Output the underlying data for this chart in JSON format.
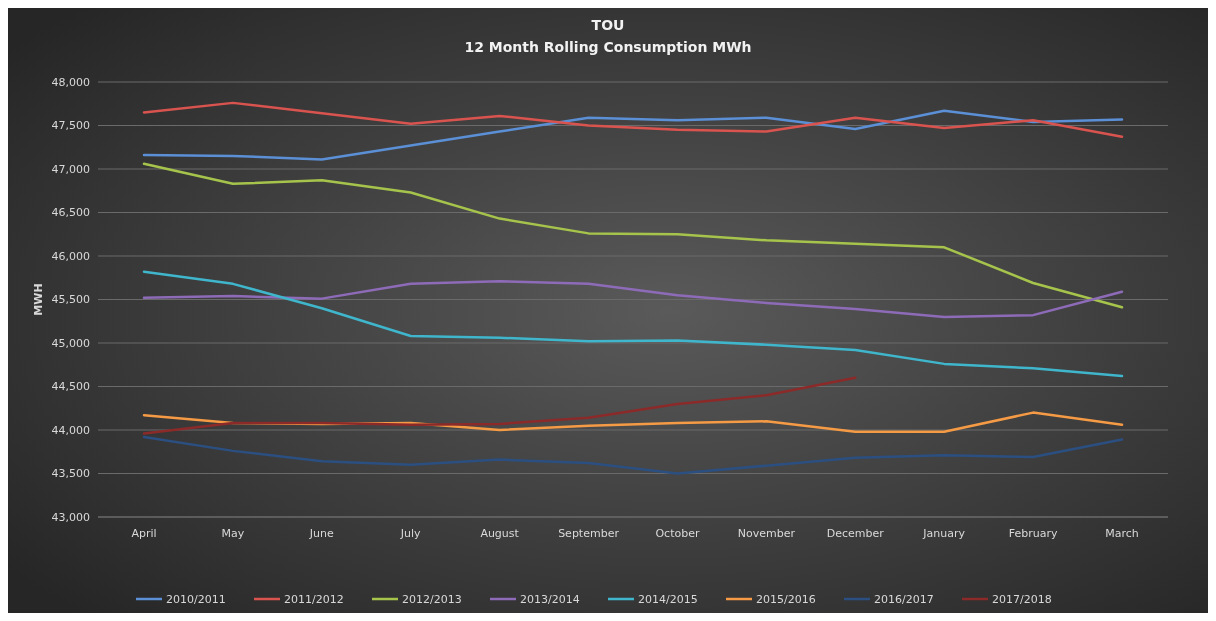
{
  "chart_data": {
    "type": "line",
    "title": "TOU",
    "subtitle": "12 Month Rolling Consumption MWh",
    "ylabel": "MWH",
    "categories": [
      "April",
      "May",
      "June",
      "July",
      "August",
      "September",
      "October",
      "November",
      "December",
      "January",
      "February",
      "March"
    ],
    "ylim": [
      43000,
      48000
    ],
    "yticks": [
      {
        "value": 43000,
        "label": "43,000"
      },
      {
        "value": 43500,
        "label": "43,500"
      },
      {
        "value": 44000,
        "label": "44,000"
      },
      {
        "value": 44500,
        "label": "44,500"
      },
      {
        "value": 45000,
        "label": "45,000"
      },
      {
        "value": 45500,
        "label": "45,500"
      },
      {
        "value": 46000,
        "label": "46,000"
      },
      {
        "value": 46500,
        "label": "46,500"
      },
      {
        "value": 47000,
        "label": "47,000"
      },
      {
        "value": 47500,
        "label": "47,500"
      },
      {
        "value": 48000,
        "label": "48,000"
      }
    ],
    "grid": "y",
    "legend": "bottom",
    "marker": "none",
    "line_style": "solid",
    "series": [
      {
        "name": "2010/2011",
        "color": "#5b8fd6",
        "values": [
          47160,
          47150,
          47110,
          47270,
          47430,
          47590,
          47560,
          47590,
          47460,
          47670,
          47540,
          47570
        ]
      },
      {
        "name": "2011/2012",
        "color": "#d9534f",
        "values": [
          47650,
          47760,
          47640,
          47520,
          47610,
          47500,
          47450,
          47430,
          47590,
          47470,
          47560,
          47370
        ]
      },
      {
        "name": "2012/2013",
        "color": "#a6c44c",
        "values": [
          47060,
          46830,
          46870,
          46730,
          46430,
          46260,
          46250,
          46180,
          46140,
          46100,
          45690,
          45410
        ]
      },
      {
        "name": "2013/2014",
        "color": "#8e6bb8",
        "values": [
          45520,
          45540,
          45510,
          45680,
          45710,
          45680,
          45550,
          45460,
          45390,
          45300,
          45320,
          45590
        ]
      },
      {
        "name": "2014/2015",
        "color": "#3fb6cc",
        "values": [
          45820,
          45680,
          45400,
          45080,
          45060,
          45020,
          45030,
          44980,
          44920,
          44760,
          44710,
          44620
        ]
      },
      {
        "name": "2015/2016",
        "color": "#f59a45",
        "values": [
          44170,
          44080,
          44070,
          44080,
          44000,
          44050,
          44080,
          44100,
          43980,
          43980,
          44200,
          44060
        ]
      },
      {
        "name": "2016/2017",
        "color": "#2b4f80",
        "values": [
          43920,
          43760,
          43640,
          43600,
          43660,
          43620,
          43500,
          43590,
          43680,
          43710,
          43690,
          43890
        ]
      },
      {
        "name": "2017/2018",
        "color": "#8c2a2a",
        "values": [
          43960,
          44080,
          44080,
          44060,
          44070,
          44140,
          44300,
          44400,
          44600,
          null,
          null,
          null
        ]
      }
    ]
  }
}
